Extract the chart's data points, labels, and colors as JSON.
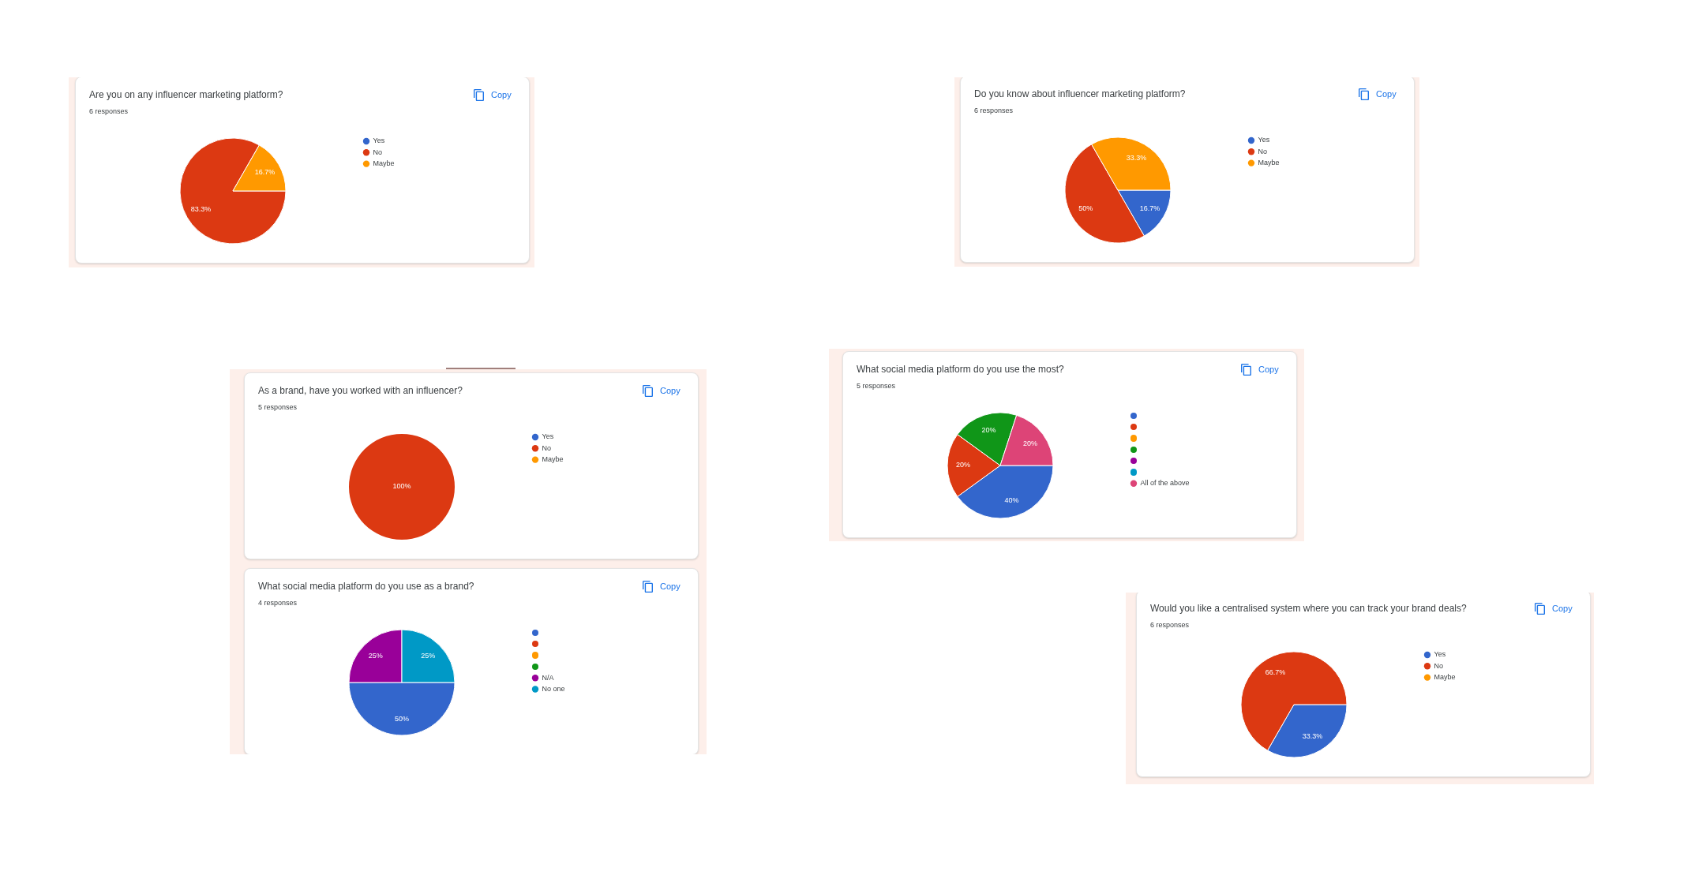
{
  "chart_data": [
    {
      "type": "pie",
      "title": "Are you on any influencer marketing platform?",
      "subtitle": "6 responses",
      "categories": [
        "Yes",
        "No",
        "Maybe"
      ],
      "values": [
        0,
        83.3,
        16.7
      ],
      "colors": [
        "#3366cc",
        "#dc3912",
        "#ff9900"
      ],
      "value_labels": [
        null,
        "83.3%",
        "16.7%"
      ],
      "legend": "right",
      "annotations": [
        "Copy"
      ]
    },
    {
      "type": "pie",
      "title": "Do you know about influencer marketing platform?",
      "subtitle": "6 responses",
      "categories": [
        "Yes",
        "No",
        "Maybe"
      ],
      "values": [
        16.7,
        50,
        33.3
      ],
      "colors": [
        "#3366cc",
        "#dc3912",
        "#ff9900"
      ],
      "value_labels": [
        "16.7%",
        "50%",
        "33.3%"
      ],
      "legend": "right",
      "annotations": [
        "Copy"
      ]
    },
    {
      "type": "pie",
      "title": "As a brand, have you worked with an influencer?",
      "subtitle": "5 responses",
      "categories": [
        "Yes",
        "No",
        "Maybe"
      ],
      "values": [
        0,
        100,
        0
      ],
      "colors": [
        "#3366cc",
        "#dc3912",
        "#ff9900"
      ],
      "value_labels": [
        null,
        "100%",
        null
      ],
      "legend": "right",
      "annotations": [
        "Copy"
      ]
    },
    {
      "type": "pie",
      "title": "What social media platform do you use the most?",
      "subtitle": "5 responses",
      "categories": [
        null,
        null,
        null,
        null,
        null,
        null,
        "All of the above"
      ],
      "values": [
        40,
        20,
        0,
        20,
        0,
        0,
        20
      ],
      "colors": [
        "#3366cc",
        "#dc3912",
        "#ff9900",
        "#109618",
        "#990099",
        "#0099c6",
        "#dd4477"
      ],
      "value_labels": [
        "40%",
        "20%",
        null,
        "20%",
        null,
        null,
        "20%"
      ],
      "legend": "right",
      "annotations": [
        "Copy"
      ]
    },
    {
      "type": "pie",
      "title": "What social media platform do you use as a brand?",
      "subtitle": "4 responses",
      "categories": [
        null,
        null,
        null,
        null,
        "N/A",
        "No one"
      ],
      "values": [
        50,
        0,
        0,
        0,
        25,
        25
      ],
      "colors": [
        "#3366cc",
        "#dc3912",
        "#ff9900",
        "#109618",
        "#990099",
        "#0099c6"
      ],
      "value_labels": [
        "50%",
        null,
        null,
        null,
        "25%",
        "25%"
      ],
      "legend": "right",
      "annotations": [
        "Copy"
      ]
    },
    {
      "type": "pie",
      "title": "Would you like a centralised system where you can track your brand deals?",
      "subtitle": "6 responses",
      "categories": [
        "Yes",
        "No",
        "Maybe"
      ],
      "values": [
        33.3,
        66.7,
        0
      ],
      "colors": [
        "#3366cc",
        "#dc3912",
        "#ff9900"
      ],
      "value_labels": [
        "33.3%",
        "66.7%",
        null
      ],
      "legend": "right",
      "annotations": [
        "Copy"
      ]
    }
  ]
}
